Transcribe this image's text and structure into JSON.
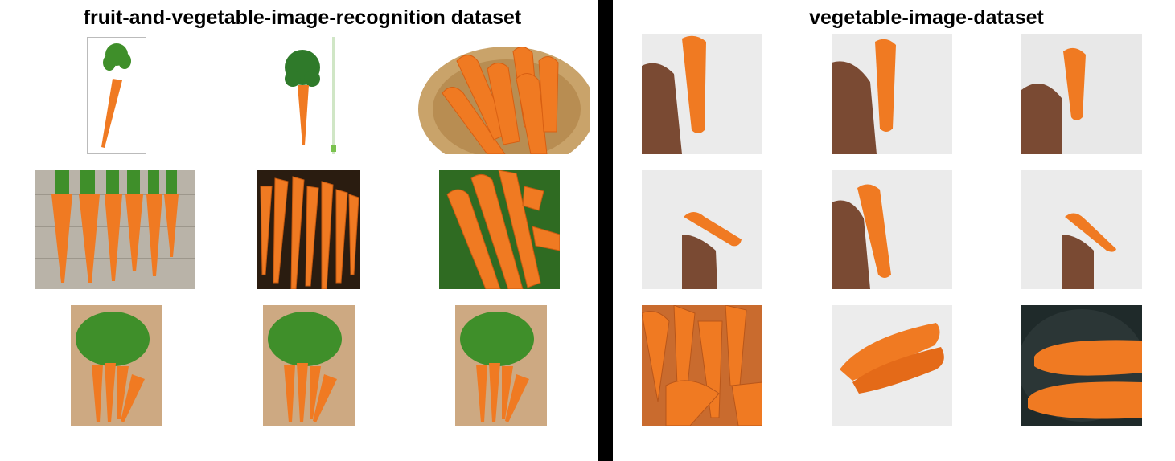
{
  "panels": {
    "left": {
      "title": "fruit-and-vegetable-image-recognition dataset"
    },
    "right": {
      "title": "vegetable-image-dataset"
    }
  },
  "colors": {
    "carrot": "#f07a22",
    "carrot_dark": "#d85f12",
    "leaf": "#3f8f2a",
    "background_left": "#ffffff",
    "background_right": "#ffffff",
    "divider": "#000000",
    "skin": "#7a4a33",
    "paper": "#ececec"
  },
  "images": {
    "left": [
      "carrot-single-with-leaves",
      "carrot-single-with-leaves-and-ruler",
      "carrots-in-basket",
      "carrots-row-on-wood",
      "carrots-bunch-dense",
      "carrots-bunch-with-greens",
      "carrot-bunch-on-soil",
      "carrot-bunch-on-soil",
      "carrot-bunch-on-soil"
    ],
    "right": [
      "hand-holding-carrot",
      "hand-holding-carrot",
      "hand-holding-carrot",
      "hand-holding-carrot-sideways",
      "hand-holding-carrot",
      "hand-holding-carrot-sideways",
      "carrots-pile",
      "two-carrots-on-white",
      "two-carrots-on-dark"
    ]
  }
}
